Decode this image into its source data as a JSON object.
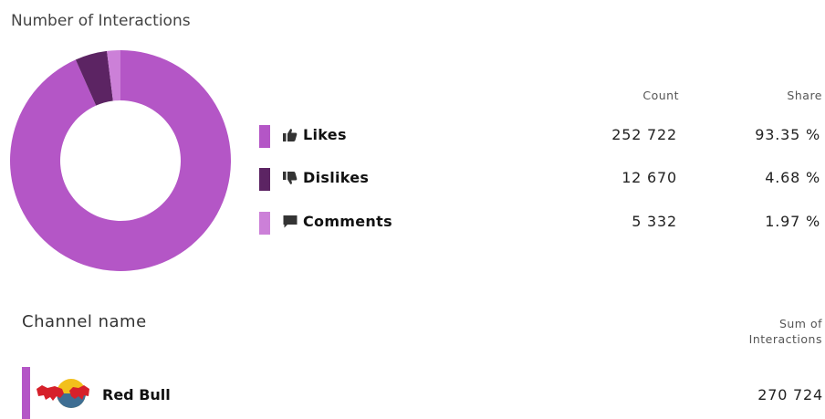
{
  "title": "Number of Interactions",
  "columns": {
    "count": "Count",
    "share": "Share"
  },
  "chart_data": {
    "type": "pie",
    "categories": [
      "Likes",
      "Dislikes",
      "Comments"
    ],
    "values": [
      252722,
      12670,
      5332
    ],
    "shares": [
      93.35,
      4.68,
      1.97
    ],
    "colors": [
      "#b456c6",
      "#5c2463",
      "#cc80d8"
    ],
    "title": "Number of Interactions"
  },
  "legend": [
    {
      "label": "Likes",
      "count": "252 722",
      "share": "93.35 %",
      "color": "#b456c6",
      "icon": "thumbs-up-icon"
    },
    {
      "label": "Dislikes",
      "count": "12 670",
      "share": "4.68 %",
      "color": "#5c2463",
      "icon": "thumbs-down-icon"
    },
    {
      "label": "Comments",
      "count": "5 332",
      "share": "1.97 %",
      "color": "#cc80d8",
      "icon": "comment-icon"
    }
  ],
  "channel_table": {
    "header_name": "Channel name",
    "header_sum_line1": "Sum of",
    "header_sum_line2": "Interactions",
    "rows": [
      {
        "name": "Red Bull",
        "value": "270 724",
        "color": "#b456c6",
        "logo": "red-bull-logo"
      }
    ]
  }
}
